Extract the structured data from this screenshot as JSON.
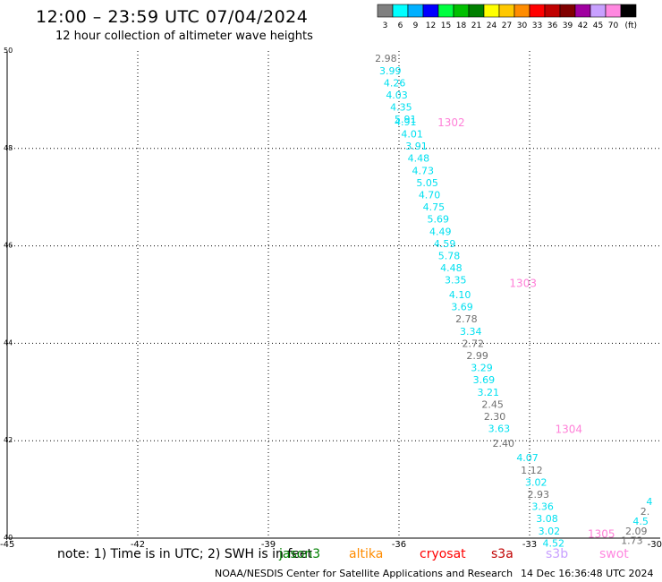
{
  "header": {
    "title": "12:00 – 23:59 UTC 07/04/2024",
    "subtitle": "12 hour collection of altimeter wave heights"
  },
  "colorbar": {
    "unit": "(ft)",
    "bins": [
      {
        "label": "3",
        "color": "#808080"
      },
      {
        "label": "6",
        "color": "#00ffff"
      },
      {
        "label": "9",
        "color": "#00b0ff"
      },
      {
        "label": "12",
        "color": "#0000ff"
      },
      {
        "label": "15",
        "color": "#00ff40"
      },
      {
        "label": "18",
        "color": "#00c000"
      },
      {
        "label": "21",
        "color": "#008000"
      },
      {
        "label": "24",
        "color": "#ffff00"
      },
      {
        "label": "27",
        "color": "#ffc800"
      },
      {
        "label": "30",
        "color": "#ff8c00"
      },
      {
        "label": "33",
        "color": "#ff0000"
      },
      {
        "label": "36",
        "color": "#c00000"
      },
      {
        "label": "39",
        "color": "#800000"
      },
      {
        "label": "42",
        "color": "#a000a0"
      },
      {
        "label": "45",
        "color": "#c8a0ff"
      },
      {
        "label": "70",
        "color": "#ff88e0"
      },
      {
        "label": "",
        "color": "#000000"
      }
    ]
  },
  "chart_data": {
    "type": "scatter",
    "xlim": [
      -45,
      -30
    ],
    "ylim": [
      40,
      50
    ],
    "x_ticks": [
      -45,
      -42,
      -39,
      -36,
      -33,
      -30
    ],
    "x_tick_labels": [
      "-45",
      "-42",
      "-39",
      "-36",
      "-33",
      "-30"
    ],
    "y_ticks": [
      40,
      42,
      44,
      46,
      48,
      50
    ],
    "y_tick_labels": [
      "40",
      "42",
      "44",
      "46",
      "48",
      "50"
    ],
    "grid": true,
    "point_colors": {
      "gray": "#707070",
      "cyan": "#00e0f0",
      "pink": "#ff80d8"
    },
    "points": [
      {
        "x": -36.3,
        "y": 49.85,
        "label": "2.98",
        "c": "gray"
      },
      {
        "x": -36.2,
        "y": 49.6,
        "label": "3.99",
        "c": "cyan"
      },
      {
        "x": -36.1,
        "y": 49.35,
        "label": "4.26",
        "c": "cyan"
      },
      {
        "x": -36.05,
        "y": 49.1,
        "label": "4.03",
        "c": "cyan"
      },
      {
        "x": -35.95,
        "y": 48.85,
        "label": "4.35",
        "c": "cyan"
      },
      {
        "x": -35.85,
        "y": 48.6,
        "label": "5.91",
        "c": "cyan"
      },
      {
        "x": -35.85,
        "y": 48.55,
        "label": "4.91",
        "c": "cyan"
      },
      {
        "x": -35.7,
        "y": 48.3,
        "label": "4.01",
        "c": "cyan"
      },
      {
        "x": -35.6,
        "y": 48.05,
        "label": "3.91",
        "c": "cyan"
      },
      {
        "x": -35.55,
        "y": 47.8,
        "label": "4.48",
        "c": "cyan"
      },
      {
        "x": -35.45,
        "y": 47.55,
        "label": "4.73",
        "c": "cyan"
      },
      {
        "x": -35.35,
        "y": 47.3,
        "label": "5.05",
        "c": "cyan"
      },
      {
        "x": -35.3,
        "y": 47.05,
        "label": "4.70",
        "c": "cyan"
      },
      {
        "x": -35.2,
        "y": 46.8,
        "label": "4.75",
        "c": "cyan"
      },
      {
        "x": -35.1,
        "y": 46.55,
        "label": "5.69",
        "c": "cyan"
      },
      {
        "x": -35.05,
        "y": 46.3,
        "label": "4.49",
        "c": "cyan"
      },
      {
        "x": -34.95,
        "y": 46.05,
        "label": "4.59",
        "c": "cyan"
      },
      {
        "x": -34.85,
        "y": 45.8,
        "label": "5.78",
        "c": "cyan"
      },
      {
        "x": -34.8,
        "y": 45.55,
        "label": "4.48",
        "c": "cyan"
      },
      {
        "x": -34.7,
        "y": 45.3,
        "label": "3.35",
        "c": "cyan"
      },
      {
        "x": -34.6,
        "y": 45.0,
        "label": "4.10",
        "c": "cyan"
      },
      {
        "x": -34.55,
        "y": 44.75,
        "label": "3.69",
        "c": "cyan"
      },
      {
        "x": -34.45,
        "y": 44.5,
        "label": "2.78",
        "c": "gray"
      },
      {
        "x": -34.35,
        "y": 44.25,
        "label": "3.34",
        "c": "cyan"
      },
      {
        "x": -34.3,
        "y": 44.0,
        "label": "2.72",
        "c": "gray"
      },
      {
        "x": -34.2,
        "y": 43.75,
        "label": "2.99",
        "c": "gray"
      },
      {
        "x": -34.1,
        "y": 43.5,
        "label": "3.29",
        "c": "cyan"
      },
      {
        "x": -34.05,
        "y": 43.25,
        "label": "3.69",
        "c": "cyan"
      },
      {
        "x": -33.95,
        "y": 43.0,
        "label": "3.21",
        "c": "cyan"
      },
      {
        "x": -33.85,
        "y": 42.75,
        "label": "2.45",
        "c": "gray"
      },
      {
        "x": -33.8,
        "y": 42.5,
        "label": "2.30",
        "c": "gray"
      },
      {
        "x": -33.7,
        "y": 42.25,
        "label": "3.63",
        "c": "cyan"
      },
      {
        "x": -33.6,
        "y": 41.95,
        "label": "2.40",
        "c": "gray"
      },
      {
        "x": -33.05,
        "y": 41.65,
        "label": "4.07",
        "c": "cyan"
      },
      {
        "x": -32.95,
        "y": 41.4,
        "label": "1.12",
        "c": "gray"
      },
      {
        "x": -32.85,
        "y": 41.15,
        "label": "3.02",
        "c": "cyan"
      },
      {
        "x": -32.8,
        "y": 40.9,
        "label": "2.93",
        "c": "gray"
      },
      {
        "x": -32.7,
        "y": 40.65,
        "label": "3.36",
        "c": "cyan"
      },
      {
        "x": -32.6,
        "y": 40.4,
        "label": "3.08",
        "c": "cyan"
      },
      {
        "x": -32.55,
        "y": 40.15,
        "label": "3.02",
        "c": "cyan"
      },
      {
        "x": -32.45,
        "y": 39.9,
        "label": "4.52",
        "c": "cyan"
      },
      {
        "x": -30.25,
        "y": 40.75,
        "label": "4",
        "c": "cyan"
      },
      {
        "x": -30.35,
        "y": 40.55,
        "label": "2.",
        "c": "gray"
      },
      {
        "x": -30.45,
        "y": 40.35,
        "label": "4.5",
        "c": "cyan"
      },
      {
        "x": -30.55,
        "y": 40.15,
        "label": "2.09",
        "c": "gray"
      },
      {
        "x": -30.65,
        "y": 39.95,
        "label": "1.73",
        "c": "gray"
      }
    ],
    "time_labels": [
      {
        "x": -34.8,
        "y": 48.55,
        "label": "1302"
      },
      {
        "x": -33.15,
        "y": 45.25,
        "label": "1303"
      },
      {
        "x": -32.1,
        "y": 42.25,
        "label": "1304"
      },
      {
        "x": -31.35,
        "y": 40.1,
        "label": "1305"
      }
    ]
  },
  "footer": {
    "note": "note: 1) Time is in UTC; 2) SWH is in feet",
    "missions": [
      {
        "label": "jason3",
        "color": "#008000"
      },
      {
        "label": "altika",
        "color": "#ff8c00"
      },
      {
        "label": "cryosat",
        "color": "#ff0000"
      },
      {
        "label": "s3a",
        "color": "#c00000"
      },
      {
        "label": "s3b",
        "color": "#c8a0ff"
      },
      {
        "label": "swot",
        "color": "#ff88e0"
      }
    ],
    "credit": "NOAA/NESDIS Center for Satellite Applications and Research",
    "timestamp": "14 Dec 16:36:48 UTC 2024"
  }
}
